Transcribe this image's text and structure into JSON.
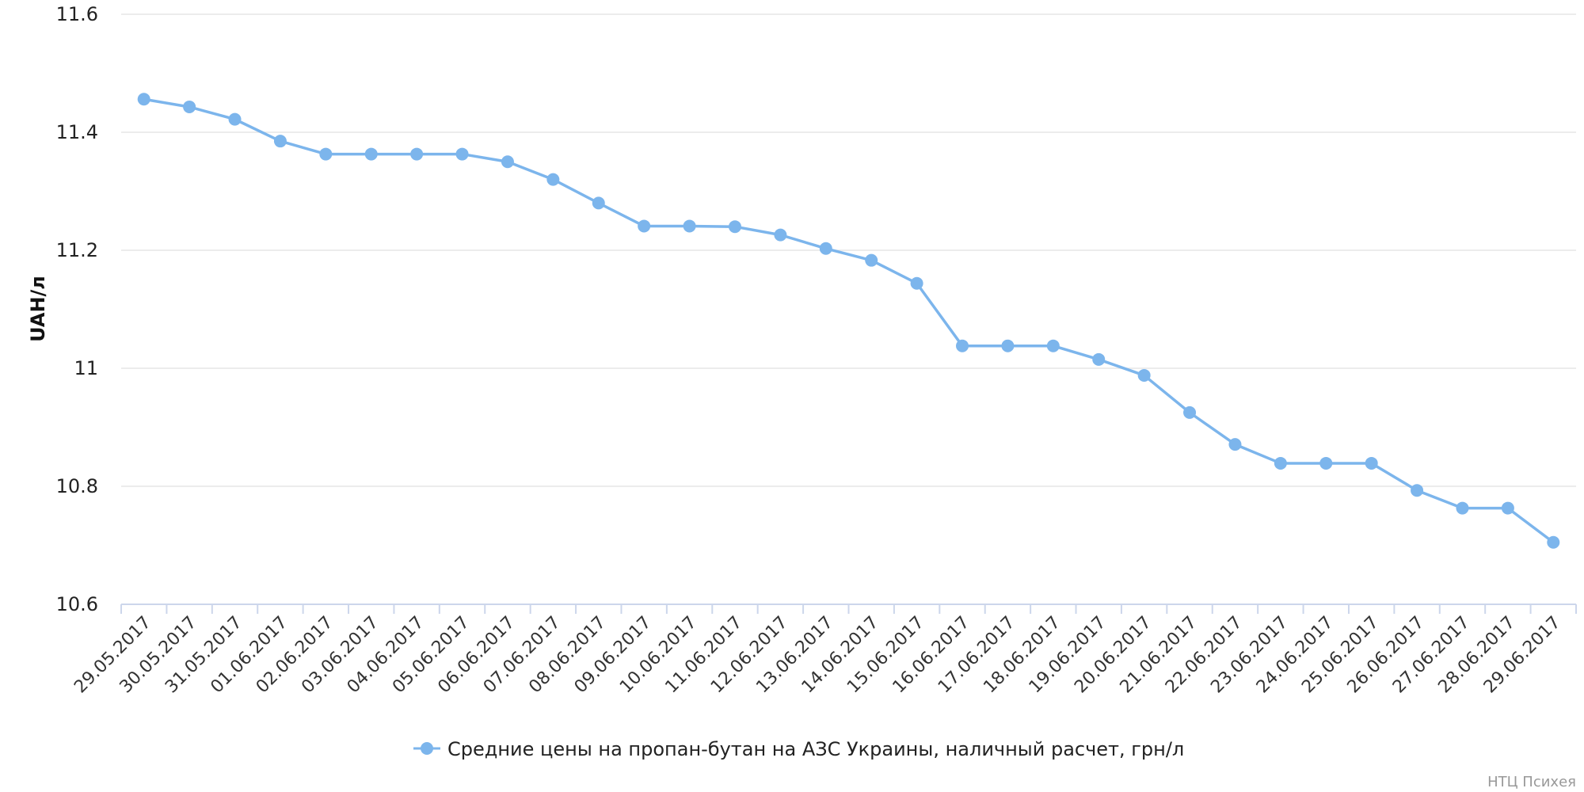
{
  "chart_data": {
    "type": "line",
    "ylabel": "UAH/л",
    "xlabel": "",
    "ylim": [
      10.6,
      11.6
    ],
    "yticks": [
      "11.6",
      "11.4",
      "11.2",
      "11",
      "10.8",
      "10.6"
    ],
    "grid": true,
    "legend_position": "bottom-center",
    "color": "#7cb5ec",
    "categories": [
      "29.05.2017",
      "30.05.2017",
      "31.05.2017",
      "01.06.2017",
      "02.06.2017",
      "03.06.2017",
      "04.06.2017",
      "05.06.2017",
      "06.06.2017",
      "07.06.2017",
      "08.06.2017",
      "09.06.2017",
      "10.06.2017",
      "11.06.2017",
      "12.06.2017",
      "13.06.2017",
      "14.06.2017",
      "15.06.2017",
      "16.06.2017",
      "17.06.2017",
      "18.06.2017",
      "19.06.2017",
      "20.06.2017",
      "21.06.2017",
      "22.06.2017",
      "23.06.2017",
      "24.06.2017",
      "25.06.2017",
      "26.06.2017",
      "27.06.2017",
      "28.06.2017",
      "29.06.2017"
    ],
    "series": [
      {
        "name": "Средние цены на пропан-бутан на АЗС Украины, наличный расчет, грн/л",
        "values": [
          11.456,
          11.443,
          11.422,
          11.385,
          11.363,
          11.363,
          11.363,
          11.363,
          11.35,
          11.32,
          11.28,
          11.241,
          11.241,
          11.24,
          11.226,
          11.203,
          11.183,
          11.144,
          11.038,
          11.038,
          11.038,
          11.015,
          10.988,
          10.925,
          10.871,
          10.839,
          10.839,
          10.839,
          10.793,
          10.763,
          10.763,
          10.705
        ]
      }
    ]
  },
  "credit": "НТЦ Психея"
}
